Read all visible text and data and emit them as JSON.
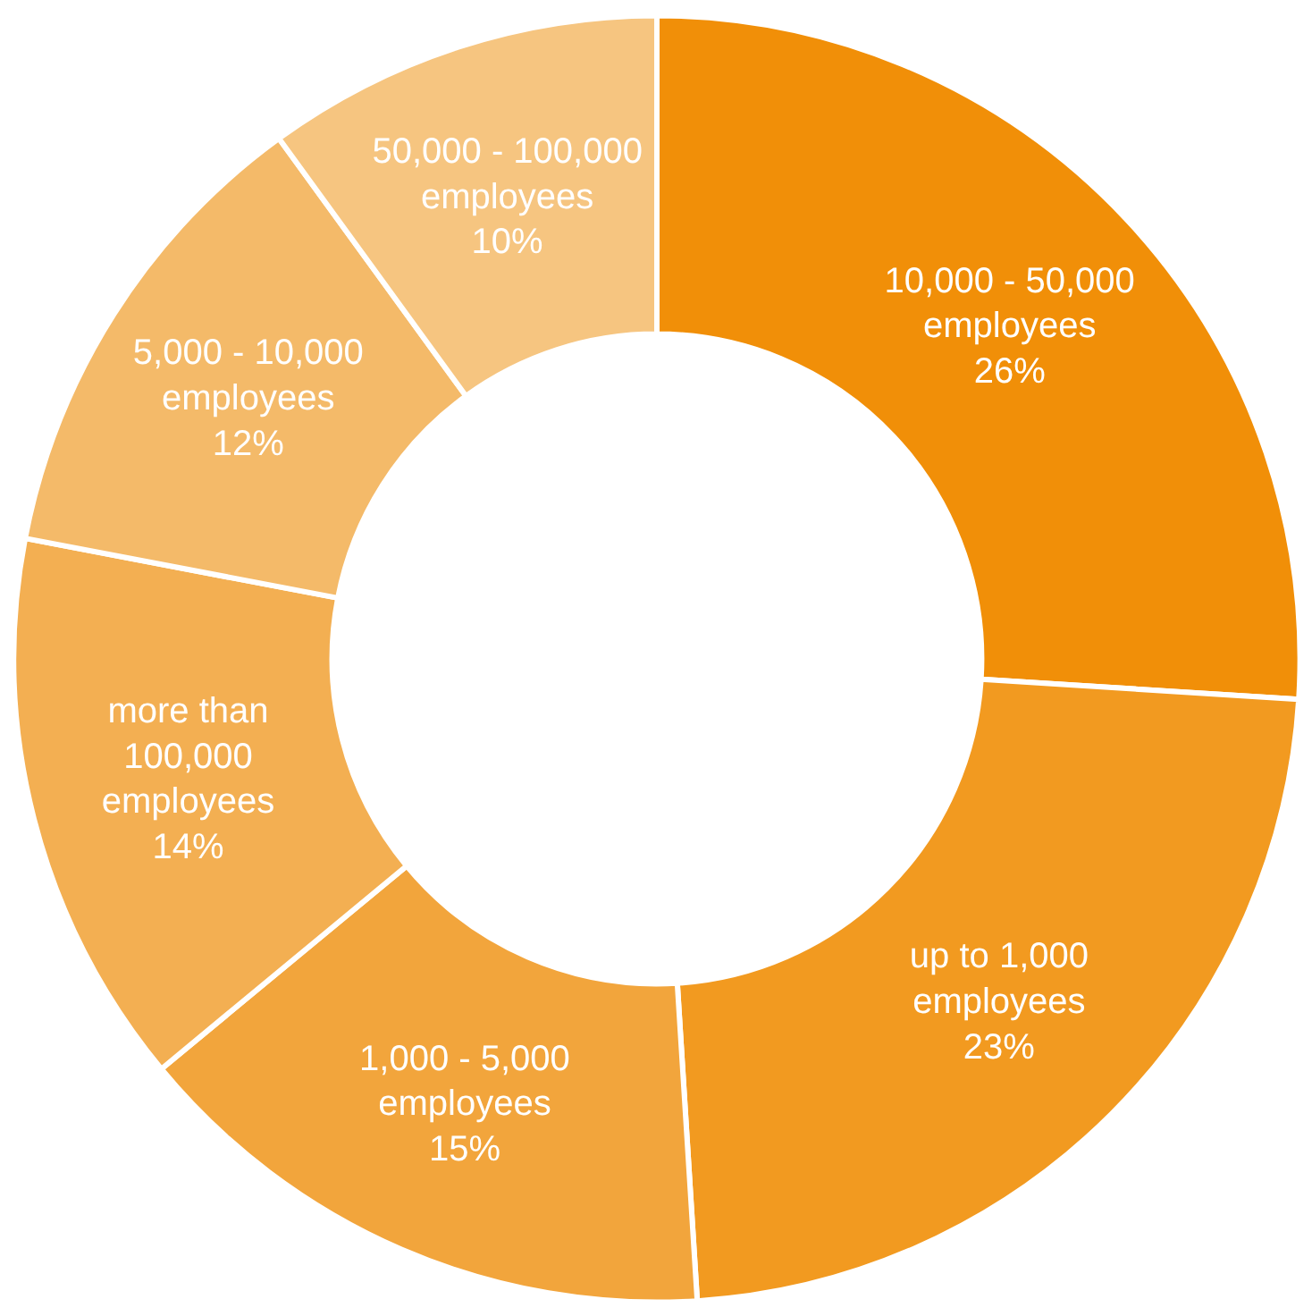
{
  "chart_data": {
    "type": "donut",
    "categories": [
      "10,000 - 50,000\nemployees",
      "up to 1,000\nemployees",
      "1,000 - 5,000\nemployees",
      "more than\n100,000\nemployees",
      "5,000 - 10,000\nemployees",
      "50,000 - 100,000\nemployees"
    ],
    "values": [
      26,
      23,
      15,
      14,
      12,
      10
    ],
    "value_labels": [
      "26%",
      "23%",
      "15%",
      "14%",
      "12%",
      "10%"
    ],
    "colors": [
      "#f18f08",
      "#f29a20",
      "#f2a53c",
      "#f3af52",
      "#f4ba69",
      "#f6c580"
    ]
  }
}
